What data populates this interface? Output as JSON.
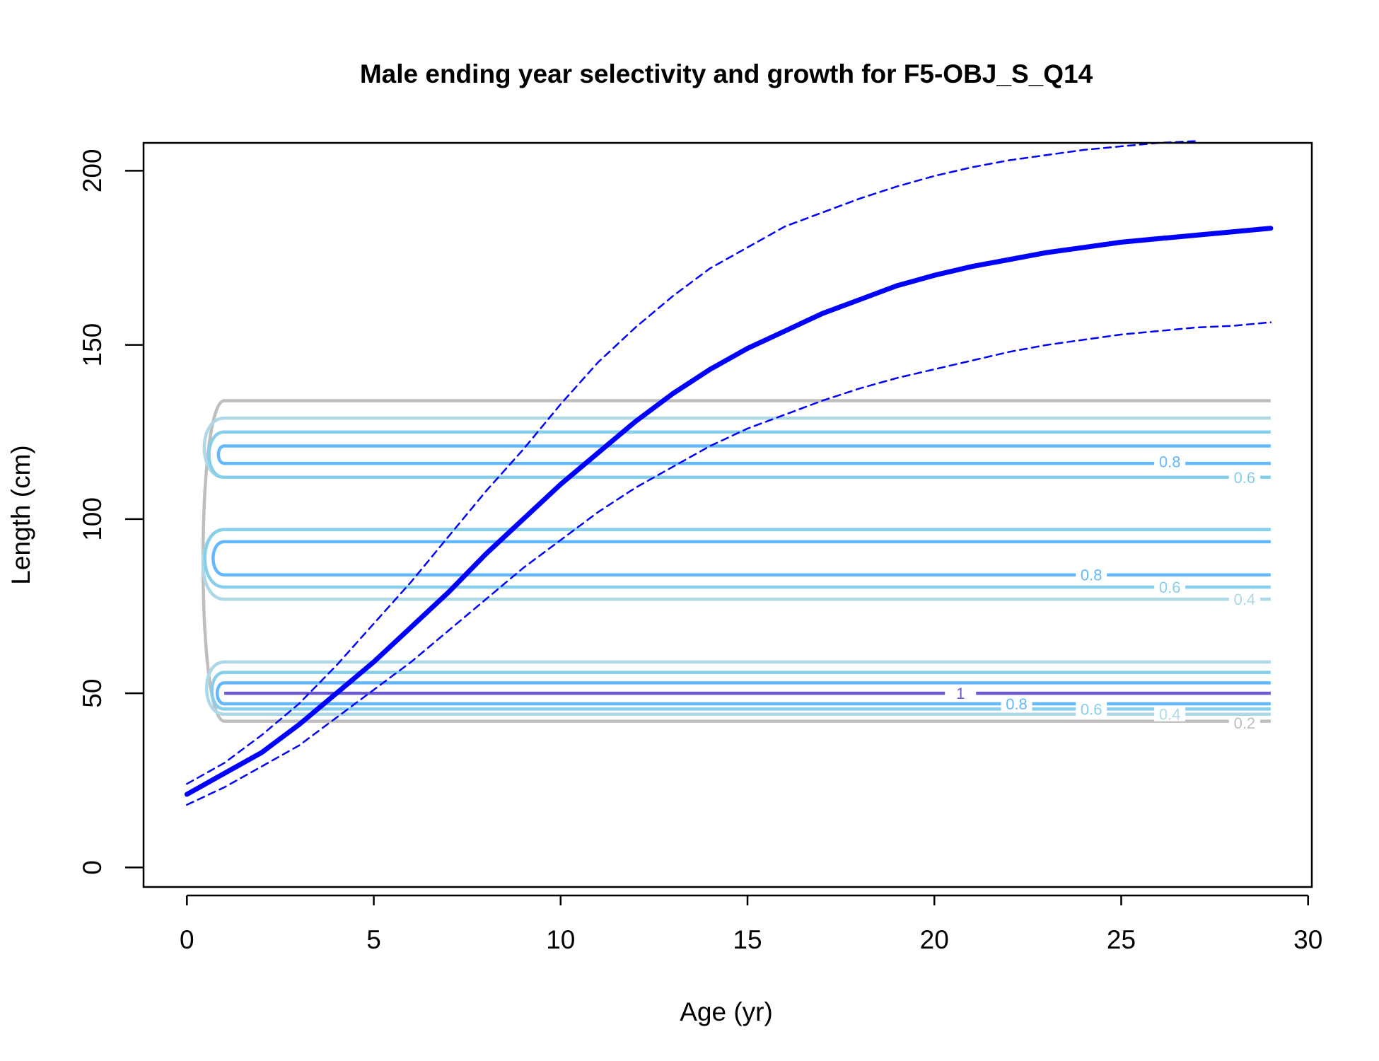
{
  "chart_data": {
    "type": "line",
    "title": "Male ending year selectivity and growth for F5-OBJ_S_Q14",
    "xlabel": "Age (yr)",
    "ylabel": "Length (cm)",
    "xlim": [
      -1.16,
      30.1
    ],
    "ylim": [
      -5.6,
      208
    ],
    "x_ticks": [
      0,
      5,
      10,
      15,
      20,
      25,
      30
    ],
    "y_ticks": [
      0,
      50,
      100,
      150,
      200
    ],
    "grid": false,
    "legend": "none",
    "series": [
      {
        "role": "mean length",
        "style": "solid-thick",
        "color": "#0000ff",
        "x": [
          0,
          1,
          2,
          3,
          4,
          5,
          6,
          7,
          8,
          9,
          10,
          11,
          12,
          13,
          14,
          15,
          16,
          17,
          18,
          19,
          20,
          21,
          22,
          23,
          24,
          25,
          26,
          27,
          28,
          29
        ],
        "y": [
          21,
          27,
          33,
          41,
          50,
          59,
          69,
          79,
          90,
          100,
          110,
          119,
          128,
          136,
          143,
          149,
          154,
          159,
          163,
          167,
          170,
          172.5,
          174.5,
          176.5,
          178,
          179.5,
          180.5,
          181.5,
          182.5,
          183.5
        ]
      },
      {
        "role": "upper interval",
        "style": "dashed",
        "color": "#0000ff",
        "x": [
          0,
          1,
          2,
          3,
          4,
          5,
          6,
          7,
          8,
          9,
          10,
          11,
          12,
          13,
          14,
          15,
          16,
          17,
          18,
          19,
          20,
          21,
          22,
          23,
          24,
          25,
          26,
          27
        ],
        "y": [
          24,
          30,
          38,
          47,
          58,
          70,
          82,
          95,
          108,
          120,
          133,
          145,
          155,
          164,
          172,
          178,
          184,
          188,
          192,
          195.5,
          198.5,
          201,
          203,
          204.5,
          206,
          207,
          208,
          208.5
        ]
      },
      {
        "role": "lower interval",
        "style": "dashed",
        "color": "#0000ff",
        "x": [
          0,
          1,
          2,
          3,
          4,
          5,
          6,
          7,
          8,
          9,
          10,
          11,
          12,
          13,
          14,
          15,
          16,
          17,
          18,
          19,
          20,
          21,
          22,
          23,
          24,
          25,
          26,
          27,
          28,
          29
        ],
        "y": [
          18,
          23,
          29,
          35,
          43,
          51,
          59,
          68,
          77,
          86,
          94,
          102,
          109,
          115,
          121,
          126,
          130,
          134,
          137.5,
          140.5,
          143,
          145.5,
          148,
          150,
          151.5,
          153,
          154,
          155,
          155.5,
          156.5
        ]
      }
    ],
    "contours": {
      "x_start": 1,
      "x_end": 29,
      "levels": [
        {
          "level": 0.2,
          "color": "#bebebe",
          "bands": [
            [
              42,
              134
            ]
          ]
        },
        {
          "level": 0.4,
          "color": "#add8e6",
          "bands": [
            [
              44,
              59
            ],
            [
              77,
              97
            ],
            [
              112,
              129
            ]
          ]
        },
        {
          "level": 0.6,
          "color": "#87ceeb",
          "bands": [
            [
              45.5,
              56
            ],
            [
              80.5,
              97
            ],
            [
              112,
              125
            ]
          ]
        },
        {
          "level": 0.8,
          "color": "#63b8ff",
          "bands": [
            [
              47,
              53
            ],
            [
              84,
              93.5
            ],
            [
              116,
              121
            ]
          ]
        },
        {
          "level": 1,
          "color": "#6a5acd",
          "bands": [
            [
              50,
              50
            ]
          ]
        }
      ],
      "labels": [
        {
          "text": "0.8",
          "x": 26.3,
          "y": 116.5,
          "color": "#63b8ff"
        },
        {
          "text": "0.6",
          "x": 28.3,
          "y": 112,
          "color": "#87ceeb"
        },
        {
          "text": "0.8",
          "x": 24.2,
          "y": 84,
          "color": "#63b8ff"
        },
        {
          "text": "0.6",
          "x": 26.3,
          "y": 80.5,
          "color": "#87ceeb"
        },
        {
          "text": "0.4",
          "x": 28.3,
          "y": 77,
          "color": "#add8e6"
        },
        {
          "text": "1",
          "x": 20.7,
          "y": 50,
          "color": "#6a5acd"
        },
        {
          "text": "0.8",
          "x": 22.2,
          "y": 47,
          "color": "#63b8ff"
        },
        {
          "text": "0.6",
          "x": 24.2,
          "y": 45.5,
          "color": "#87ceeb"
        },
        {
          "text": "0.4",
          "x": 26.3,
          "y": 44,
          "color": "#add8e6"
        },
        {
          "text": "0.2",
          "x": 28.3,
          "y": 41.5,
          "color": "#bebebe"
        }
      ]
    }
  }
}
